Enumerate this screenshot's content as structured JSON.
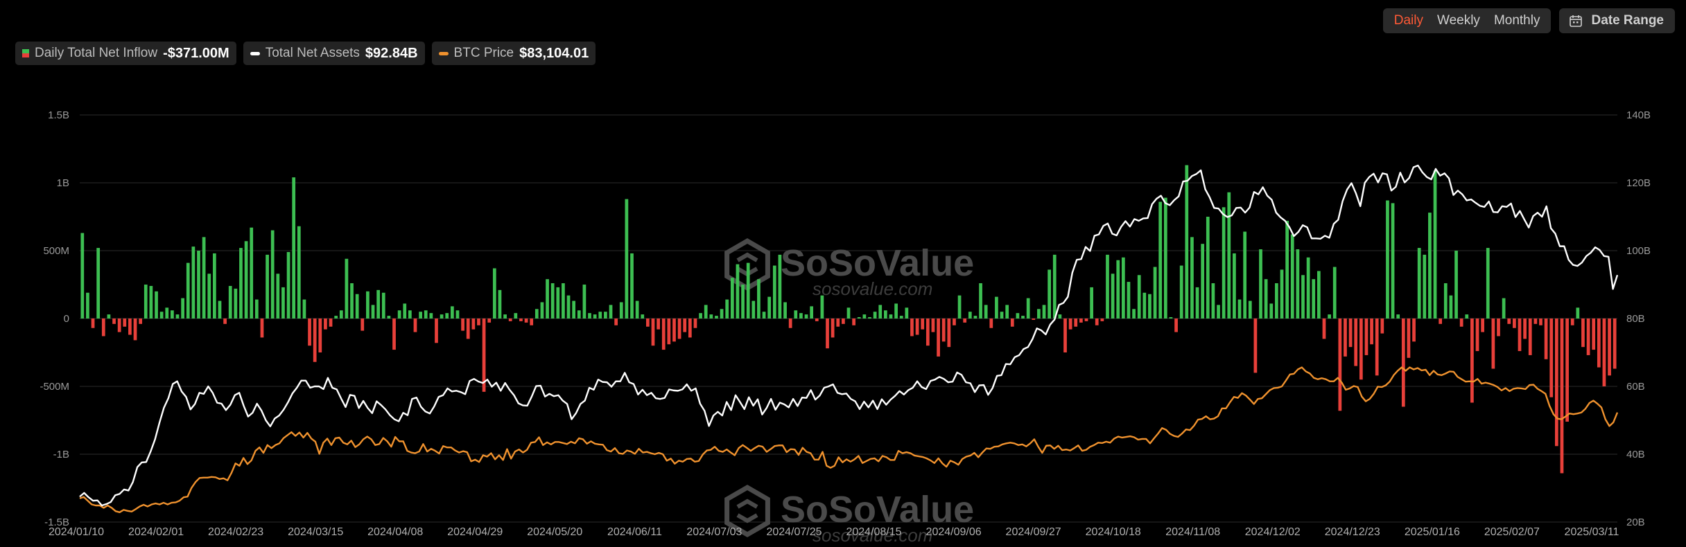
{
  "toolbar": {
    "periods": [
      {
        "label": "Daily",
        "active": true
      },
      {
        "label": "Weekly",
        "active": false
      },
      {
        "label": "Monthly",
        "active": false
      }
    ],
    "date_range_label": "Date Range",
    "date_range_icon": "calendar-icon"
  },
  "legend": {
    "inflow": {
      "label": "Daily Total Net Inflow",
      "value": "-$371.00M"
    },
    "assets": {
      "label": "Total Net Assets",
      "value": "$92.84B"
    },
    "btc": {
      "label": "BTC Price",
      "value": "$83,104.01"
    }
  },
  "watermark": {
    "brand": "SoSoValue",
    "url": "sosovalue.com"
  },
  "colors": {
    "positive": "#3dbf52",
    "negative": "#e8403a",
    "assets": "#ffffff",
    "btc": "#f0922e",
    "grid": "#2b2b2b"
  },
  "chart_data": {
    "type": "bar",
    "title": "",
    "xlabel": "",
    "ylabel": "",
    "x_ticks": [
      "2024/01/10",
      "2024/02/01",
      "2024/02/23",
      "2024/03/15",
      "2024/04/08",
      "2024/04/29",
      "2024/05/20",
      "2024/06/11",
      "2024/07/03",
      "2024/07/25",
      "2024/08/15",
      "2024/09/06",
      "2024/09/27",
      "2024/10/18",
      "2024/11/08",
      "2024/12/02",
      "2024/12/23",
      "2025/01/16",
      "2025/02/07",
      "2025/03/11"
    ],
    "y_left": {
      "min": -1.5,
      "max": 1.5,
      "ticks": [
        1.5,
        1,
        0.5,
        0,
        -0.5,
        -1,
        -1.5
      ],
      "tick_labels": [
        "1.5B",
        "1B",
        "500M",
        "0",
        "-500M",
        "-1B",
        "-1.5B"
      ]
    },
    "y_right": {
      "min": 20,
      "max": 140,
      "ticks": [
        140,
        120,
        100,
        80,
        60,
        40,
        20
      ],
      "tick_labels": [
        "140B",
        "120B",
        "100B",
        "80B",
        "60B",
        "40B",
        "20B"
      ]
    },
    "grid": true,
    "legend_position": "top-left",
    "series": [
      {
        "name": "Daily Total Net Inflow",
        "axis": "left",
        "unit": "B",
        "values": [
          0.63,
          0.19,
          -0.07,
          0.52,
          -0.13,
          0.03,
          -0.04,
          -0.1,
          -0.06,
          -0.12,
          -0.16,
          -0.04,
          0.25,
          0.24,
          0.2,
          0.05,
          0.08,
          0.06,
          0.03,
          0.15,
          0.41,
          0.53,
          0.5,
          0.6,
          0.33,
          0.48,
          0.13,
          -0.04,
          0.24,
          0.22,
          0.52,
          0.57,
          0.67,
          0.14,
          -0.14,
          0.47,
          0.65,
          0.33,
          0.23,
          0.49,
          1.04,
          0.68,
          0.14,
          -0.2,
          -0.32,
          -0.25,
          -0.08,
          -0.06,
          0.02,
          0.06,
          0.44,
          0.26,
          0.18,
          -0.09,
          0.2,
          0.1,
          0.21,
          0.19,
          0.02,
          -0.23,
          0.06,
          0.11,
          0.06,
          -0.1,
          0.05,
          0.06,
          0.04,
          -0.18,
          0.03,
          0.04,
          0.09,
          0.06,
          -0.09,
          -0.15,
          -0.08,
          -0.05,
          -0.54,
          -0.03,
          0.37,
          0.21,
          0.03,
          -0.02,
          0.04,
          -0.02,
          -0.03,
          -0.05,
          0.07,
          0.12,
          0.29,
          0.26,
          0.23,
          0.26,
          0.17,
          0.13,
          0.06,
          0.25,
          0.04,
          0.03,
          0.05,
          0.05,
          0.1,
          -0.05,
          0.12,
          0.88,
          0.48,
          0.13,
          0.03,
          -0.06,
          -0.2,
          -0.08,
          -0.23,
          -0.19,
          -0.17,
          -0.15,
          -0.1,
          -0.14,
          -0.07,
          0.04,
          0.1,
          0.03,
          0.02,
          0.07,
          0.14,
          0.3,
          0.4,
          0.25,
          0.41,
          0.13,
          0.29,
          0.05,
          0.16,
          0.39,
          0.47,
          0.12,
          -0.07,
          0.06,
          0.04,
          0.03,
          0.09,
          -0.02,
          0.17,
          -0.22,
          -0.14,
          -0.06,
          -0.04,
          0.08,
          -0.05,
          0.01,
          0.03,
          0.01,
          0.05,
          0.1,
          0.06,
          0.03,
          0.11,
          0.02,
          0.08,
          -0.13,
          -0.12,
          -0.08,
          -0.2,
          -0.1,
          -0.28,
          -0.17,
          -0.21,
          -0.05,
          0.17,
          -0.03,
          0.05,
          0.02,
          0.26,
          0.1,
          -0.07,
          0.16,
          0.05,
          0.1,
          -0.06,
          0.04,
          0.02,
          0.15,
          -0.01,
          0.07,
          0.1,
          0.36,
          0.47,
          0.03,
          -0.25,
          -0.08,
          -0.06,
          -0.03,
          -0.02,
          0.23,
          -0.05,
          -0.02,
          0.47,
          0.33,
          0.43,
          0.45,
          0.27,
          0.07,
          0.32,
          0.19,
          0.18,
          0.38,
          0.86,
          0.89,
          0.01,
          -0.1,
          0.39,
          1.13,
          0.6,
          0.23,
          0.55,
          0.75,
          0.26,
          0.1,
          0.82,
          0.93,
          0.48,
          0.14,
          0.64,
          0.13,
          -0.4,
          0.51,
          0.29,
          0.11,
          0.26,
          0.36,
          0.72,
          0.62,
          0.51,
          0.32,
          0.45,
          0.29,
          0.35,
          -0.15,
          0.03,
          0.38,
          -0.68,
          -0.28,
          -0.21,
          -0.35,
          -0.45,
          -0.27,
          -0.19,
          -0.42,
          -0.11,
          0.87,
          0.85,
          0.03,
          -0.65,
          -0.29,
          -0.17,
          0.52,
          0.47,
          0.78,
          1.09,
          -0.04,
          0.26,
          0.17,
          0.5,
          -0.06,
          0.03,
          -0.62,
          -0.24,
          -0.1,
          0.52,
          -0.37,
          -0.13,
          0.15,
          -0.04,
          -0.07,
          -0.24,
          -0.15,
          -0.27,
          -0.04,
          -0.05,
          -0.3,
          -0.58,
          -0.94,
          -1.14,
          -0.76,
          -0.05,
          0.08,
          -0.21,
          -0.27,
          -0.23,
          -0.36,
          -0.5,
          -0.42,
          -0.37
        ]
      },
      {
        "name": "Total Net Assets",
        "axis": "right",
        "unit": "B",
        "values": [
          27.5,
          28.6,
          27.3,
          26.3,
          26.4,
          24.9,
          25.3,
          25.9,
          27.9,
          28.3,
          29.6,
          29.3,
          31.8,
          36.2,
          37.6,
          37.7,
          40.8,
          44.4,
          49.3,
          53.7,
          56.5,
          60.7,
          61.5,
          58.5,
          56.9,
          53.2,
          54.8,
          58.1,
          57.8,
          60.0,
          58.1,
          55.2,
          54.9,
          53.0,
          54.6,
          57.4,
          58.1,
          54.3,
          51.1,
          52.2,
          54.9,
          52.9,
          50.0,
          48.2,
          50.5,
          51.4,
          53.1,
          55.3,
          57.9,
          59.6,
          61.7,
          61.7,
          59.6,
          60.0,
          60.0,
          59.2,
          62.5,
          59.6,
          59.1,
          56.4,
          53.9,
          57.5,
          57.2,
          53.6,
          55.7,
          53.6,
          52.1,
          55.6,
          54.5,
          53.2,
          51.5,
          50.3,
          49.7,
          52.2,
          51.5,
          56.3,
          56.7,
          54.0,
          52.6,
          52.0,
          54.1,
          56.9,
          57.4,
          59.4,
          58.5,
          58.7,
          58.3,
          57.7,
          61.6,
          62.2,
          61.4,
          61.0,
          62.0,
          59.9,
          61.1,
          58.7,
          61.0,
          59.0,
          57.4,
          55.0,
          54.4,
          54.3,
          57.0,
          60.1,
          60.2,
          57.0,
          57.8,
          57.1,
          57.4,
          55.8,
          54.8,
          50.3,
          52.1,
          54.8,
          55.8,
          59.6,
          59.0,
          62.0,
          61.3,
          61.2,
          59.9,
          61.5,
          61.5,
          64.0,
          61.2,
          60.7,
          57.6,
          59.0,
          57.4,
          58.1,
          56.5,
          56.3,
          56.6,
          59.1,
          58.8,
          58.7,
          59.1,
          60.6,
          58.7,
          59.4,
          54.9,
          52.8,
          48.3,
          51.4,
          52.5,
          51.4,
          55.4,
          53.0,
          57.4,
          55.4,
          53.3,
          56.8,
          54.3,
          56.2,
          51.7,
          53.6,
          56.3,
          53.1,
          55.2,
          54.7,
          53.8,
          56.3,
          54.2,
          56.7,
          56.6,
          58.9,
          56.1,
          57.3,
          59.6,
          60.0,
          60.6,
          58.1,
          57.7,
          57.9,
          56.3,
          55.6,
          53.3,
          55.5,
          53.8,
          55.8,
          53.3,
          56.2,
          54.6,
          56.1,
          57.2,
          58.6,
          57.6,
          58.9,
          59.6,
          61.5,
          59.8,
          59.2,
          61.6,
          62.0,
          62.8,
          62.2,
          61.2,
          61.4,
          64.1,
          63.4,
          61.2,
          60.9,
          58.3,
          60.3,
          60.4,
          57.5,
          59.5,
          63.1,
          63.3,
          66.6,
          66.5,
          68.6,
          69.2,
          71.0,
          71.6,
          73.9,
          77.1,
          76.5,
          75.3,
          78.2,
          79.7,
          84.0,
          84.6,
          86.4,
          93.5,
          97.3,
          97.5,
          101.1,
          99.9,
          104.4,
          104.8,
          107.3,
          108.0,
          105.0,
          104.5,
          107.0,
          108.7,
          107.1,
          109.3,
          108.8,
          109.5,
          109.6,
          113.7,
          115.3,
          116.2,
          114.0,
          113.4,
          114.9,
          116.0,
          120.4,
          120.6,
          122.0,
          122.6,
          123.7,
          118.1,
          115.7,
          112.6,
          112.4,
          110.8,
          109.9,
          110.4,
          112.6,
          112.7,
          111.2,
          112.7,
          117.3,
          116.6,
          118.7,
          116.2,
          115.0,
          111.2,
          109.8,
          108.8,
          106.9,
          104.3,
          105.5,
          107.5,
          106.9,
          103.6,
          103.6,
          103.5,
          104.4,
          103.8,
          107.9,
          109.1,
          114.6,
          118.0,
          119.9,
          116.9,
          113.1,
          120.0,
          121.7,
          122.7,
          120.1,
          122.8,
          122.5,
          117.7,
          118.8,
          123.0,
          120.1,
          121.4,
          124.6,
          125.1,
          123.1,
          121.7,
          121.0,
          124.1,
          122.1,
          122.8,
          121.3,
          116.4,
          117.7,
          116.6,
          114.8,
          115.1,
          114.1,
          113.2,
          112.9,
          114.5,
          111.4,
          111.3,
          113.1,
          112.9,
          113.9,
          109.9,
          111.7,
          109.2,
          106.8,
          110.2,
          111.2,
          110.0,
          113.1,
          106.6,
          105.0,
          101.3,
          101.3,
          97.3,
          95.8,
          95.5,
          96.5,
          98.4,
          99.4,
          101.0,
          100.2,
          98.4,
          98.2,
          88.7,
          92.8
        ]
      },
      {
        "name": "BTC Price",
        "axis": "right",
        "unit": "B",
        "values": [
          27.0,
          27.4,
          26.3,
          25.2,
          24.9,
          24.9,
          24.2,
          24.9,
          24.2,
          23.2,
          22.9,
          23.6,
          23.3,
          23.1,
          23.8,
          24.6,
          25.1,
          24.6,
          25.2,
          25.5,
          25.2,
          25.7,
          25.2,
          25.7,
          25.8,
          26.3,
          27.3,
          27.5,
          30.1,
          31.8,
          33.0,
          33.1,
          33.1,
          33.3,
          33.2,
          32.7,
          32.9,
          32.3,
          34.5,
          37.3,
          36.6,
          38.9,
          37.1,
          38.2,
          41.0,
          42.0,
          40.4,
          42.7,
          41.8,
          42.7,
          43.2,
          44.7,
          45.6,
          46.5,
          45.4,
          46.4,
          44.9,
          46.3,
          44.6,
          43.7,
          40.1,
          43.4,
          44.6,
          42.7,
          44.7,
          44.9,
          43.4,
          42.9,
          44.0,
          42.1,
          42.9,
          44.4,
          45.2,
          44.4,
          42.7,
          43.0,
          44.8,
          43.8,
          42.2,
          45.1,
          43.8,
          43.8,
          41.0,
          40.5,
          40.3,
          40.8,
          43.0,
          40.8,
          41.6,
          41.0,
          40.2,
          42.4,
          42.0,
          42.0,
          41.1,
          40.5,
          40.9,
          40.6,
          37.9,
          38.4,
          37.7,
          39.7,
          39.3,
          40.3,
          38.5,
          39.7,
          38.3,
          41.5,
          38.7,
          40.8,
          41.4,
          40.5,
          41.3,
          43.4,
          43.6,
          45.0,
          42.7,
          43.5,
          42.9,
          43.6,
          43.6,
          43.3,
          43.0,
          43.7,
          43.2,
          44.7,
          44.4,
          43.1,
          43.8,
          43.1,
          42.9,
          42.8,
          41.2,
          40.8,
          41.8,
          40.3,
          40.1,
          41.1,
          40.8,
          40.1,
          41.6,
          40.5,
          40.7,
          40.3,
          40.0,
          40.4,
          40.0,
          38.1,
          38.7,
          37.2,
          38.1,
          37.8,
          38.6,
          38.7,
          37.8,
          38.0,
          39.9,
          41.1,
          41.3,
          42.2,
          41.0,
          40.7,
          41.4,
          40.5,
          39.7,
          41.8,
          42.7,
          41.9,
          41.0,
          41.8,
          42.5,
          42.2,
          40.7,
          41.5,
          42.4,
          42.6,
          42.6,
          40.6,
          41.5,
          41.4,
          39.8,
          41.9,
          40.7,
          40.3,
          38.4,
          38.4,
          40.7,
          36.6,
          36.0,
          36.6,
          39.1,
          37.6,
          38.5,
          37.8,
          38.5,
          39.5,
          37.4,
          38.0,
          38.6,
          38.8,
          37.9,
          39.5,
          39.1,
          38.3,
          38.3,
          41.0,
          40.3,
          40.6,
          40.3,
          39.6,
          39.4,
          39.2,
          38.8,
          38.2,
          37.4,
          38.8,
          37.3,
          36.3,
          38.1,
          37.6,
          36.9,
          38.6,
          39.3,
          39.6,
          40.4,
          39.1,
          40.5,
          41.7,
          41.6,
          42.2,
          42.3,
          42.9,
          43.2,
          43.4,
          43.2,
          42.7,
          42.9,
          42.3,
          43.2,
          44.4,
          42.2,
          40.4,
          42.5,
          42.6,
          41.6,
          42.5,
          41.2,
          41.4,
          41.1,
          41.8,
          42.6,
          41.0,
          41.3,
          42.2,
          42.7,
          43.4,
          43.3,
          43.7,
          43.4,
          44.6,
          45.2,
          44.9,
          45.1,
          45.3,
          45.0,
          44.3,
          44.5,
          44.5,
          43.2,
          44.7,
          46.1,
          47.7,
          47.2,
          46.0,
          45.4,
          45.1,
          46.1,
          47.3,
          47.1,
          48.4,
          50.2,
          50.4,
          51.2,
          50.3,
          50.5,
          51.2,
          53.5,
          53.5,
          55.3,
          56.9,
          56.6,
          58.0,
          57.3,
          56.1,
          54.8,
          56.3,
          56.5,
          57.7,
          58.9,
          59.5,
          59.6,
          60.0,
          61.7,
          63.5,
          63.7,
          65.0,
          65.6,
          64.4,
          63.8,
          62.5,
          62.1,
          62.4,
          62.1,
          61.5,
          61.5,
          62.5,
          61.1,
          59.0,
          59.4,
          60.1,
          59.8,
          57.0,
          55.6,
          56.3,
          57.8,
          59.9,
          59.8,
          60.3,
          61.4,
          63.3,
          64.6,
          65.6,
          64.6,
          65.6,
          65.0,
          65.4,
          64.7,
          64.9,
          63.3,
          64.6,
          63.5,
          63.3,
          63.8,
          64.4,
          64.3,
          62.8,
          62.1,
          61.4,
          61.5,
          61.4,
          62.2,
          60.8,
          61.1,
          60.8,
          60.4,
          59.8,
          58.8,
          59.5,
          58.6,
          59.3,
          59.5,
          59.4,
          59.2,
          60.4,
          60.5,
          59.3,
          58.6,
          57.8,
          54.3,
          51.8,
          50.5,
          50.3,
          51.1,
          52.0,
          51.8,
          52.0,
          52.3,
          53.4,
          55.1,
          55.8,
          54.9,
          53.8,
          50.3,
          48.3,
          49.4,
          52.3
        ]
      }
    ]
  }
}
